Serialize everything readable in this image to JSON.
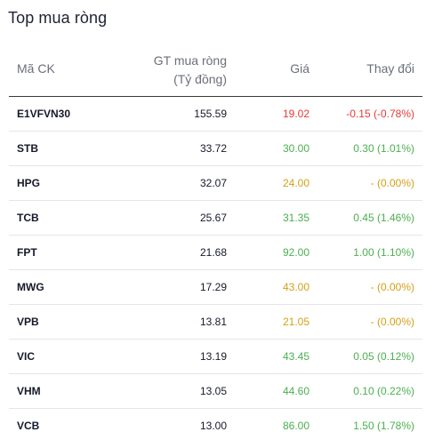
{
  "title": "Top mua ròng",
  "columns": {
    "code": "Mã CK",
    "value_line1": "GT mua ròng",
    "value_line2": "(Tỷ đồng)",
    "price": "Giá",
    "change": "Thay đổi"
  },
  "rows": [
    {
      "code": "E1VFVN30",
      "value": "155.59",
      "price": "19.02",
      "change": "-0.15 (-0.78%)",
      "status": "down"
    },
    {
      "code": "STB",
      "value": "33.72",
      "price": "30.00",
      "change": "0.30 (1.01%)",
      "status": "up"
    },
    {
      "code": "HPG",
      "value": "32.07",
      "price": "24.00",
      "change": "- (0.00%)",
      "status": "ref"
    },
    {
      "code": "TCB",
      "value": "25.67",
      "price": "31.35",
      "change": "0.45 (1.46%)",
      "status": "up"
    },
    {
      "code": "FPT",
      "value": "21.68",
      "price": "92.00",
      "change": "1.00 (1.10%)",
      "status": "up"
    },
    {
      "code": "MWG",
      "value": "17.29",
      "price": "43.00",
      "change": "- (0.00%)",
      "status": "ref"
    },
    {
      "code": "VPB",
      "value": "13.81",
      "price": "21.05",
      "change": "- (0.00%)",
      "status": "ref"
    },
    {
      "code": "VIC",
      "value": "13.19",
      "price": "43.45",
      "change": "0.05 (0.12%)",
      "status": "up"
    },
    {
      "code": "VHM",
      "value": "13.05",
      "price": "44.60",
      "change": "0.10 (0.22%)",
      "status": "up"
    },
    {
      "code": "VCB",
      "value": "13.00",
      "price": "86.00",
      "change": "1.50 (1.78%)",
      "status": "up"
    }
  ],
  "colors": {
    "up": "#4caf50",
    "down": "#e53935",
    "ref": "#d4a017"
  }
}
